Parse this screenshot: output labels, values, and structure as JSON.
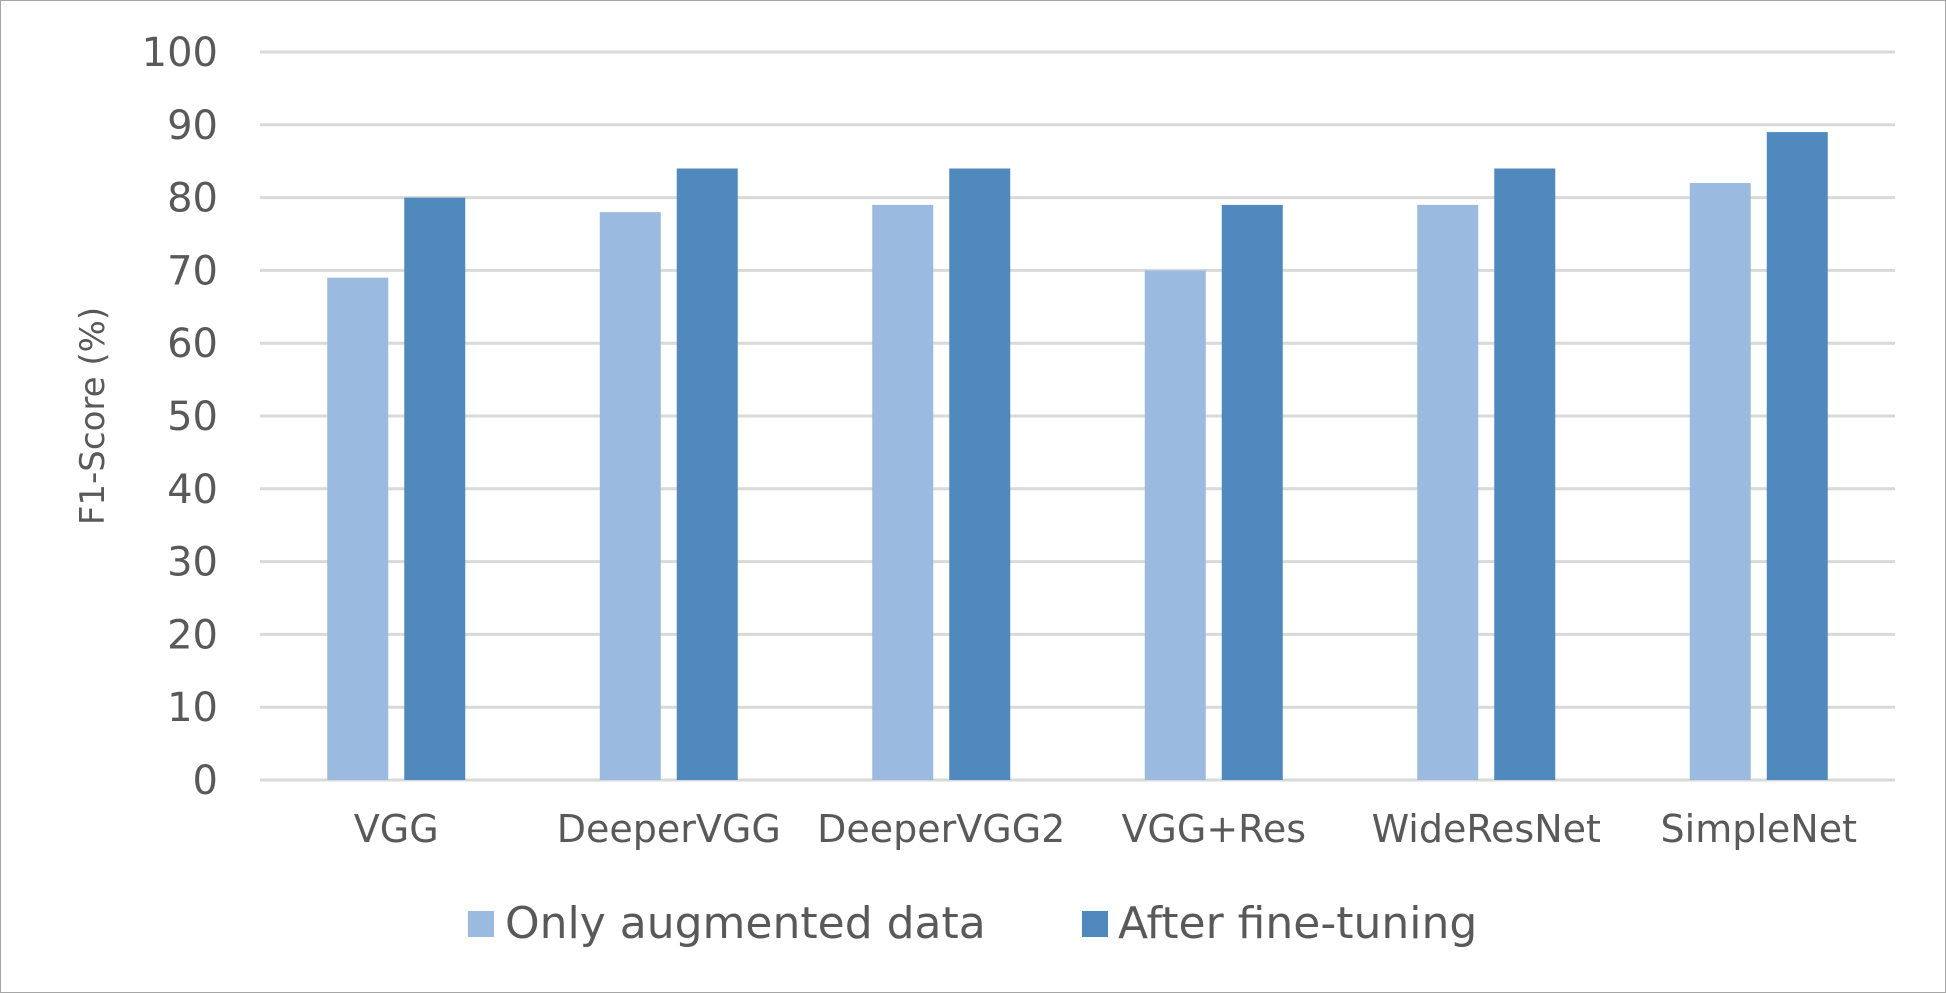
{
  "chart_data": {
    "type": "bar",
    "title": "",
    "xlabel": "",
    "ylabel": "F1-Score (%)",
    "categories": [
      "VGG",
      "DeeperVGG",
      "DeeperVGG2",
      "VGG+Res",
      "WideResNet",
      "SimpleNet"
    ],
    "series": [
      {
        "name": "Only augmented data",
        "color": "#9aBAE0",
        "values": [
          69,
          78,
          79,
          70,
          79,
          82
        ]
      },
      {
        "name": "After fine-tuning",
        "color": "#4F89BD",
        "values": [
          80,
          84,
          84,
          79,
          84,
          89
        ]
      }
    ],
    "ylim": [
      0,
      100
    ],
    "yticks": [
      0,
      10,
      20,
      30,
      40,
      50,
      60,
      70,
      80,
      90,
      100
    ],
    "grid": true,
    "gridColor": "#d9d9d9",
    "legend": "bottom"
  }
}
